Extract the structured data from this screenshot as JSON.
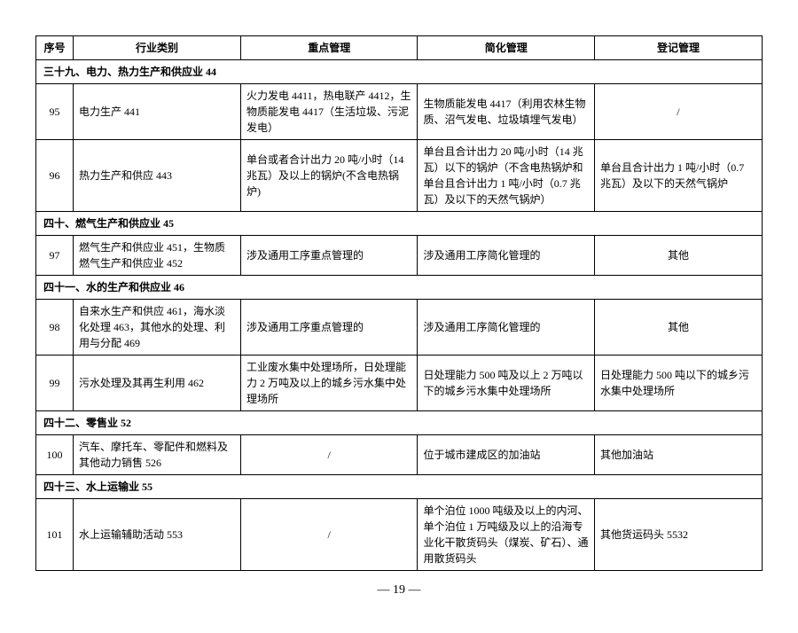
{
  "header": {
    "seq": "序号",
    "industry": "行业类别",
    "key": "重点管理",
    "simple": "简化管理",
    "register": "登记管理"
  },
  "sections": [
    {
      "title": "三十九、电力、热力生产和供应业 44",
      "rows": [
        {
          "seq": "95",
          "industry": "电力生产 441",
          "key": "火力发电 4411，热电联产 4412，生物质能发电 4417（生活垃圾、污泥发电）",
          "simple": "生物质能发电 4417（利用农林生物质、沼气发电、垃圾填埋气发电）",
          "register": "/"
        },
        {
          "seq": "96",
          "industry": "热力生产和供应 443",
          "key": "单台或者合计出力 20 吨/小时（14 兆瓦）及以上的锅炉(不含电热锅炉)",
          "simple": "单台且合计出力 20 吨/小时（14 兆瓦）以下的锅炉（不含电热锅炉和单台且合计出力 1 吨/小时（0.7 兆瓦）及以下的天然气锅炉）",
          "register": "单台且合计出力 1 吨/小时（0.7 兆瓦）及以下的天然气锅炉"
        }
      ]
    },
    {
      "title": "四十、燃气生产和供应业 45",
      "rows": [
        {
          "seq": "97",
          "industry": "燃气生产和供应业 451，生物质燃气生产和供应业 452",
          "key": "涉及通用工序重点管理的",
          "simple": "涉及通用工序简化管理的",
          "register": "其他"
        }
      ]
    },
    {
      "title": "四十一、水的生产和供应业 46",
      "rows": [
        {
          "seq": "98",
          "industry": "自来水生产和供应 461，海水淡化处理 463，其他水的处理、利用与分配 469",
          "key": "涉及通用工序重点管理的",
          "simple": "涉及通用工序简化管理的",
          "register": "其他"
        },
        {
          "seq": "99",
          "industry": "污水处理及其再生利用 462",
          "key": "工业废水集中处理场所，日处理能力 2 万吨及以上的城乡污水集中处理场所",
          "simple": "日处理能力 500 吨及以上 2 万吨以下的城乡污水集中处理场所",
          "register": "日处理能力 500 吨以下的城乡污水集中处理场所"
        }
      ]
    },
    {
      "title": "四十二、零售业 52",
      "rows": [
        {
          "seq": "100",
          "industry": "汽车、摩托车、零配件和燃料及其他动力销售 526",
          "key": "/",
          "simple": "位于城市建成区的加油站",
          "register": "其他加油站"
        }
      ]
    },
    {
      "title": "四十三、水上运输业 55",
      "rows": [
        {
          "seq": "101",
          "industry": "水上运输辅助活动 553",
          "key": "/",
          "simple": "单个泊位 1000 吨级及以上的内河、单个泊位 1 万吨级及以上的沿海专业化干散货码头（煤炭、矿石）、通用散货码头",
          "register": "其他货运码头 5532"
        }
      ]
    }
  ],
  "page_number": "— 19 —"
}
